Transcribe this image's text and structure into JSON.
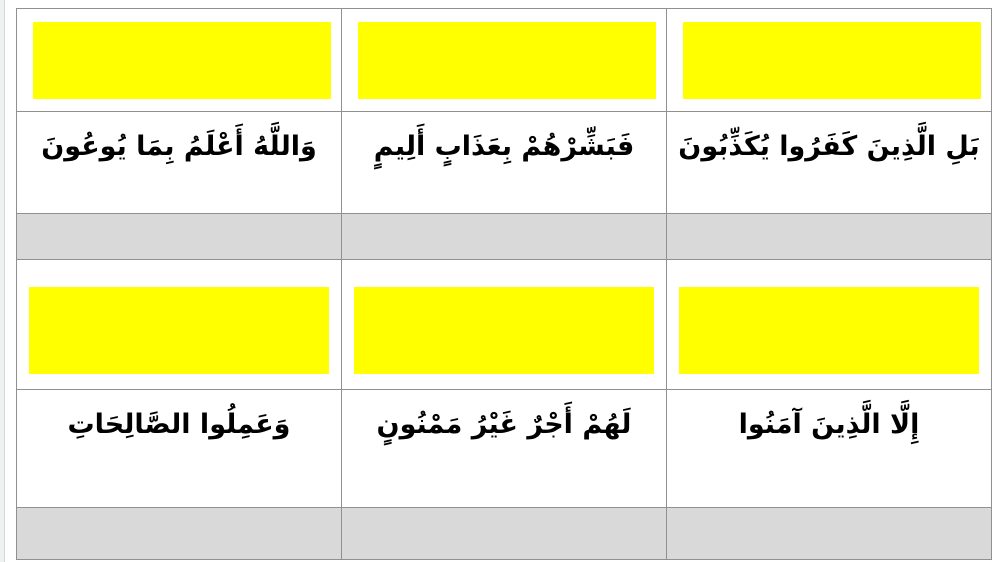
{
  "colors": {
    "highlight": "#ffff00",
    "divider": "#d9d9d9",
    "table_border": "#909090",
    "page_edge": "#eff2f2",
    "page_edge_line": "#d2d7d7",
    "text": "#000000"
  },
  "worksheet": {
    "direction": "rtl",
    "groups": [
      {
        "verses": [
          "بَلِ الَّذِينَ كَفَرُوا يُكَذِّبُونَ",
          "فَبَشِّرْهُمْ بِعَذَابٍ أَلِيمٍ",
          "وَاللَّهُ أَعْلَمُ بِمَا يُوعُونَ"
        ]
      },
      {
        "verses": [
          "إِلَّا الَّذِينَ آمَنُوا",
          "لَهُمْ أَجْرٌ غَيْرُ مَمْنُونٍ",
          "وَعَمِلُوا الصَّالِحَاتِ"
        ]
      }
    ]
  }
}
